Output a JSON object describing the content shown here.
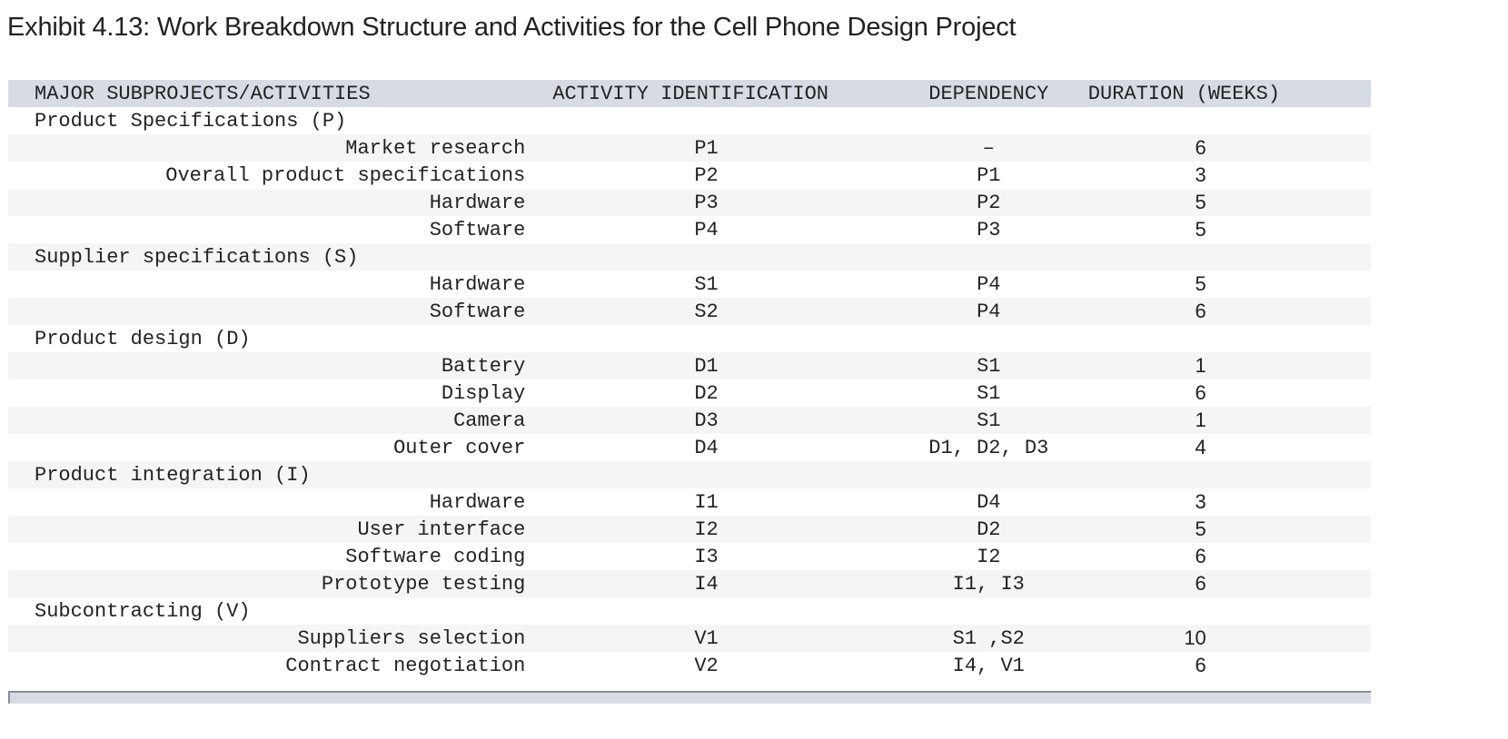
{
  "title": "Exhibit 4.13: Work Breakdown Structure and Activities for the Cell Phone Design Project",
  "table": {
    "headers": [
      "MAJOR SUBPROJECTS/ACTIVITIES",
      "ACTIVITY IDENTIFICATION",
      "DEPENDENCY",
      "DURATION (WEEKS)"
    ],
    "rows": [
      {
        "type": "group",
        "label": "Product Specifications (P)"
      },
      {
        "type": "activity",
        "label": "Market research",
        "id": "P1",
        "dep": "–",
        "dur": "6"
      },
      {
        "type": "activity",
        "label": "Overall product specifications",
        "id": "P2",
        "dep": "P1",
        "dur": "3"
      },
      {
        "type": "activity",
        "label": "Hardware",
        "id": "P3",
        "dep": "P2",
        "dur": "5"
      },
      {
        "type": "activity",
        "label": "Software",
        "id": "P4",
        "dep": "P3",
        "dur": "5"
      },
      {
        "type": "group",
        "label": "Supplier specifications (S)"
      },
      {
        "type": "activity",
        "label": "Hardware",
        "id": "S1",
        "dep": "P4",
        "dur": "5"
      },
      {
        "type": "activity",
        "label": "Software",
        "id": "S2",
        "dep": "P4",
        "dur": "6"
      },
      {
        "type": "group",
        "label": "Product design (D)"
      },
      {
        "type": "activity",
        "label": "Battery",
        "id": "D1",
        "dep": "S1",
        "dur": "1"
      },
      {
        "type": "activity",
        "label": "Display",
        "id": "D2",
        "dep": "S1",
        "dur": "6"
      },
      {
        "type": "activity",
        "label": "Camera",
        "id": "D3",
        "dep": "S1",
        "dur": "1"
      },
      {
        "type": "activity",
        "label": "Outer cover",
        "id": "D4",
        "dep": "D1, D2, D3",
        "dur": "4"
      },
      {
        "type": "group",
        "label": "Product integration (I)"
      },
      {
        "type": "activity",
        "label": "Hardware",
        "id": "I1",
        "dep": "D4",
        "dur": "3"
      },
      {
        "type": "activity",
        "label": "User interface",
        "id": "I2",
        "dep": "D2",
        "dur": "5"
      },
      {
        "type": "activity",
        "label": "Software coding",
        "id": "I3",
        "dep": "I2",
        "dur": "6"
      },
      {
        "type": "activity",
        "label": "Prototype testing",
        "id": "I4",
        "dep": "I1, I3",
        "dur": "6"
      },
      {
        "type": "group",
        "label": "Subcontracting (V)"
      },
      {
        "type": "activity",
        "label": "Suppliers selection",
        "id": "V1",
        "dep": "S1 ,S2",
        "dur": "10"
      },
      {
        "type": "activity",
        "label": "Contract negotiation",
        "id": "V2",
        "dep": "I4, V1",
        "dur": "6"
      }
    ]
  },
  "colors": {
    "header_bg": "#d7dce4",
    "stripe_bg": "#f5f5f5",
    "text": "#222222"
  }
}
